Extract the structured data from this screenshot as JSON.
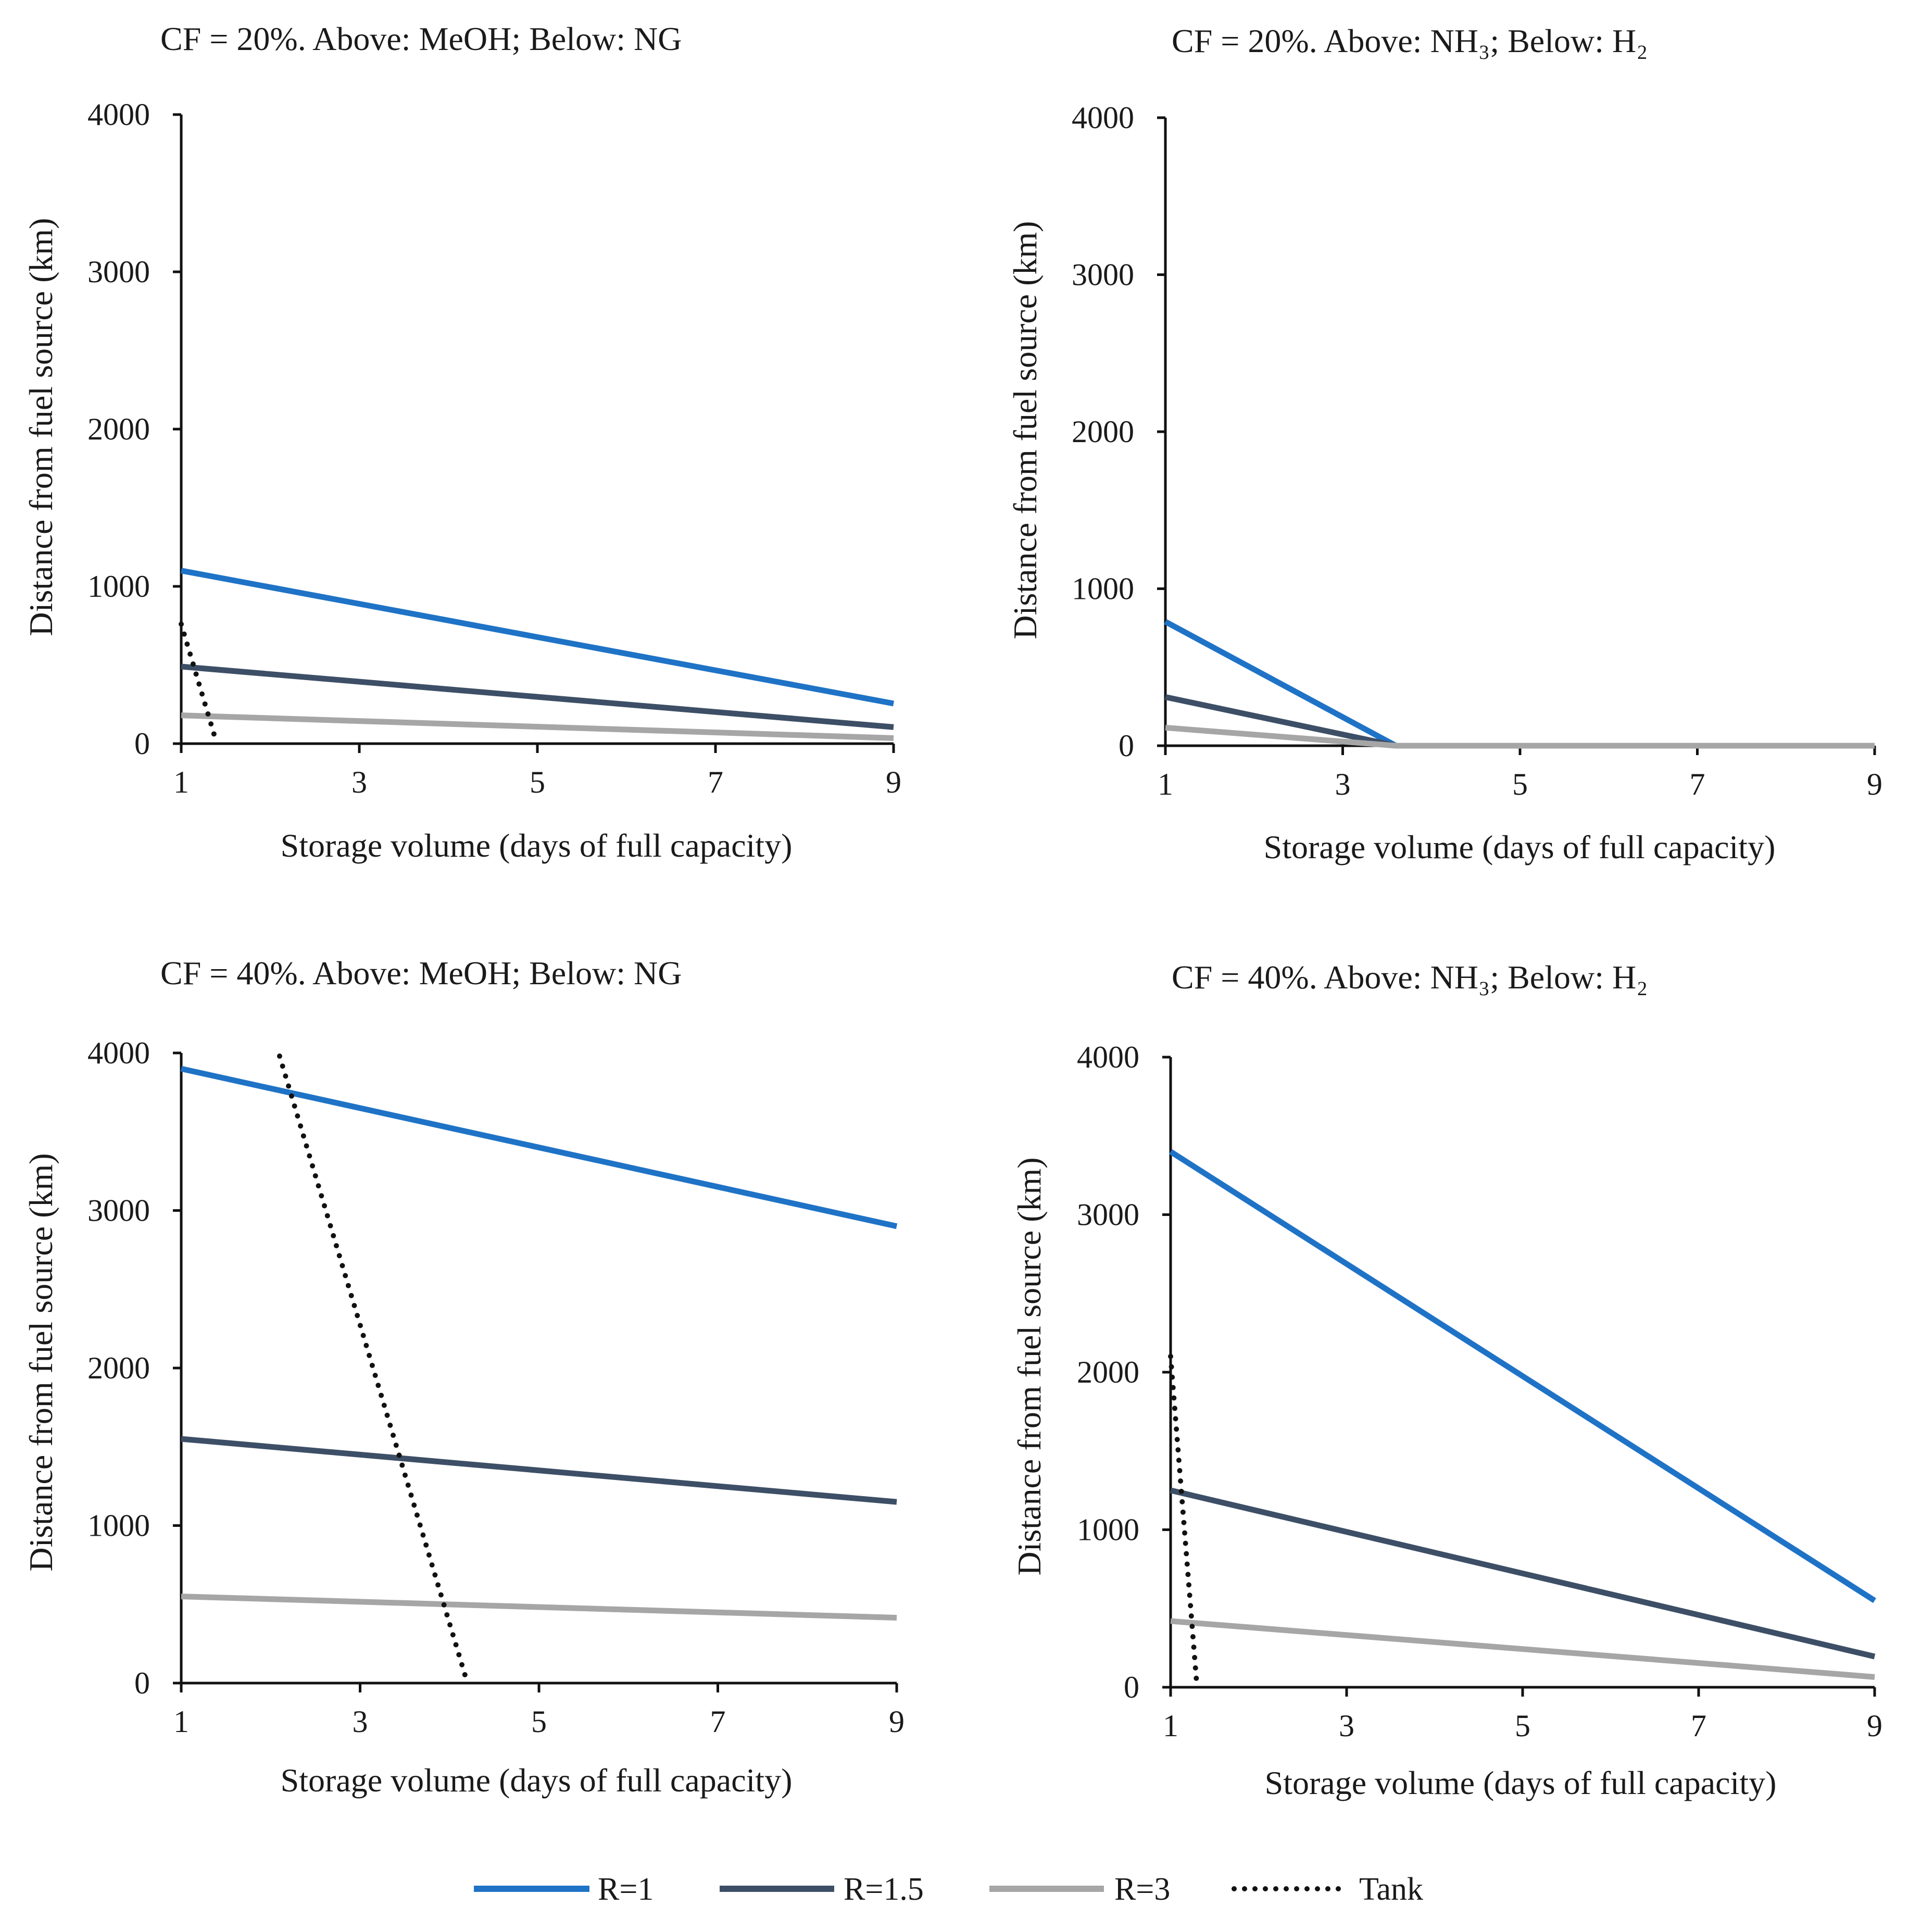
{
  "series_styles": [
    {
      "name": "R=1",
      "color": "#1f73c6",
      "dash": "solid"
    },
    {
      "name": "R=1.5",
      "color": "#3d4f66",
      "dash": "solid"
    },
    {
      "name": "R=3",
      "color": "#a6a6a6",
      "dash": "solid"
    },
    {
      "name": "Tank",
      "color": "#111111",
      "dash": "dotted"
    }
  ],
  "legend": {
    "items": [
      "R=1",
      "R=1.5",
      "R=3",
      "Tank"
    ],
    "position": "bottom-center"
  },
  "chart_data": [
    {
      "type": "line",
      "title": "CF = 20%. Above: MeOH; Below: NG",
      "xlabel": "Storage volume (days of full capacity)",
      "ylabel": "Distance from fuel source (km)",
      "xlim": [
        1,
        9
      ],
      "ylim": [
        0,
        4000
      ],
      "xticks": [
        "1",
        "3",
        "5",
        "7",
        "9"
      ],
      "yticks": [
        "0",
        "1000",
        "2000",
        "3000",
        "4000"
      ],
      "series": [
        {
          "name": "R=1",
          "x": [
            1,
            9
          ],
          "y": [
            1100,
            255
          ]
        },
        {
          "name": "R=1.5",
          "x": [
            1,
            9
          ],
          "y": [
            490,
            105
          ]
        },
        {
          "name": "R=3",
          "x": [
            1,
            9
          ],
          "y": [
            180,
            35
          ]
        },
        {
          "name": "Tank",
          "x": [
            1,
            1.4
          ],
          "y": [
            760,
            0
          ]
        }
      ]
    },
    {
      "type": "line",
      "title": "CF = 20%. Above: NH₃; Below: H₂",
      "xlabel": "Storage volume (days of full capacity)",
      "ylabel": "Distance from fuel source (km)",
      "xlim": [
        1,
        9
      ],
      "ylim": [
        0,
        4000
      ],
      "xticks": [
        "1",
        "3",
        "5",
        "7",
        "9"
      ],
      "yticks": [
        "0",
        "1000",
        "2000",
        "3000",
        "4000"
      ],
      "series": [
        {
          "name": "R=1",
          "x": [
            1,
            3.6,
            9
          ],
          "y": [
            790,
            0,
            0
          ]
        },
        {
          "name": "R=1.5",
          "x": [
            1,
            3.6,
            9
          ],
          "y": [
            310,
            0,
            0
          ]
        },
        {
          "name": "R=3",
          "x": [
            1,
            3.6,
            9
          ],
          "y": [
            115,
            0,
            0
          ]
        }
      ]
    },
    {
      "type": "line",
      "title": "CF = 40%. Above: MeOH; Below: NG",
      "xlabel": "Storage volume (days of full capacity)",
      "ylabel": "Distance from fuel source (km)",
      "xlim": [
        1,
        9
      ],
      "ylim": [
        0,
        4000
      ],
      "xticks": [
        "1",
        "3",
        "5",
        "7",
        "9"
      ],
      "yticks": [
        "0",
        "1000",
        "2000",
        "3000",
        "4000"
      ],
      "series": [
        {
          "name": "R=1",
          "x": [
            1,
            9
          ],
          "y": [
            3900,
            2900
          ]
        },
        {
          "name": "R=1.5",
          "x": [
            1,
            9
          ],
          "y": [
            1550,
            1150
          ]
        },
        {
          "name": "R=3",
          "x": [
            1,
            9
          ],
          "y": [
            550,
            415
          ]
        },
        {
          "name": "Tank",
          "x": [
            2.1,
            4.2
          ],
          "y": [
            3980,
            0
          ]
        }
      ]
    },
    {
      "type": "line",
      "title": "CF = 40%. Above: NH₃; Below: H₂",
      "xlabel": "Storage volume (days of full capacity)",
      "ylabel": "Distance from fuel source (km)",
      "xlim": [
        1,
        9
      ],
      "ylim": [
        0,
        4000
      ],
      "xticks": [
        "1",
        "3",
        "5",
        "7",
        "9"
      ],
      "yticks": [
        "0",
        "1000",
        "2000",
        "3000",
        "4000"
      ],
      "series": [
        {
          "name": "R=1",
          "x": [
            1,
            9
          ],
          "y": [
            3400,
            550
          ]
        },
        {
          "name": "R=1.5",
          "x": [
            1,
            9
          ],
          "y": [
            1250,
            195
          ]
        },
        {
          "name": "R=3",
          "x": [
            1,
            9
          ],
          "y": [
            420,
            65
          ]
        },
        {
          "name": "Tank",
          "x": [
            1,
            1.3
          ],
          "y": [
            2100,
            0
          ]
        }
      ]
    }
  ]
}
